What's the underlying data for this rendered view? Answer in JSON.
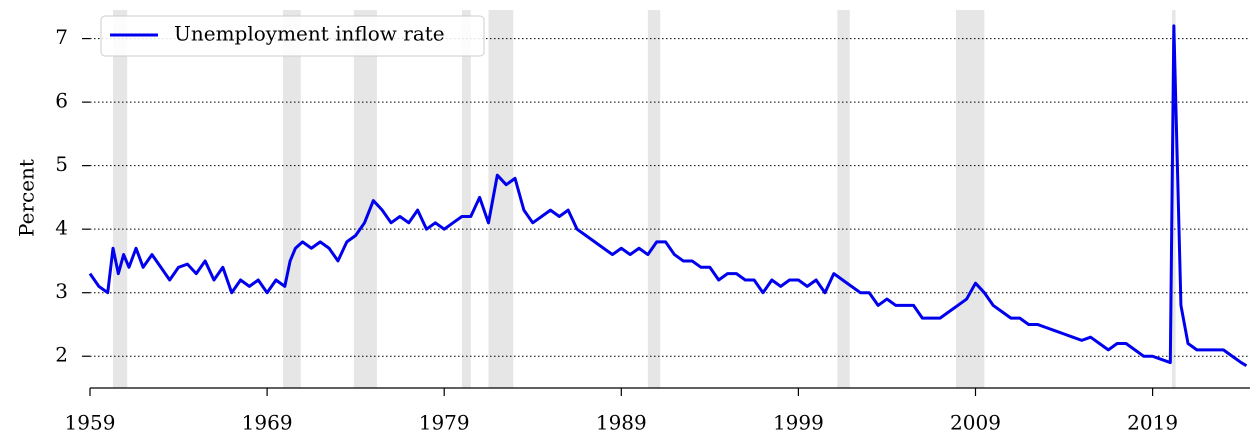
{
  "chart_data": {
    "type": "line",
    "ylabel": "Percent",
    "x": [
      1959.0,
      1959.5,
      1960.0,
      1960.3,
      1960.6,
      1960.9,
      1961.2,
      1961.6,
      1962.0,
      1962.5,
      1963.0,
      1963.5,
      1964.0,
      1964.5,
      1965.0,
      1965.5,
      1966.0,
      1966.5,
      1967.0,
      1967.5,
      1968.0,
      1968.5,
      1969.0,
      1969.5,
      1970.0,
      1970.3,
      1970.6,
      1971.0,
      1971.5,
      1972.0,
      1972.5,
      1973.0,
      1973.5,
      1974.0,
      1974.5,
      1975.0,
      1975.5,
      1976.0,
      1976.5,
      1977.0,
      1977.5,
      1978.0,
      1978.5,
      1979.0,
      1979.5,
      1980.0,
      1980.5,
      1981.0,
      1981.5,
      1982.0,
      1982.5,
      1983.0,
      1983.5,
      1984.0,
      1984.5,
      1985.0,
      1985.5,
      1986.0,
      1986.5,
      1987.0,
      1987.5,
      1988.0,
      1988.5,
      1989.0,
      1989.5,
      1990.0,
      1990.5,
      1991.0,
      1991.5,
      1992.0,
      1992.5,
      1993.0,
      1993.5,
      1994.0,
      1994.5,
      1995.0,
      1995.5,
      1996.0,
      1996.5,
      1997.0,
      1997.5,
      1998.0,
      1998.5,
      1999.0,
      1999.5,
      2000.0,
      2000.5,
      2001.0,
      2001.5,
      2002.0,
      2002.5,
      2003.0,
      2003.5,
      2004.0,
      2004.5,
      2005.0,
      2005.5,
      2006.0,
      2006.5,
      2007.0,
      2007.5,
      2008.0,
      2008.5,
      2009.0,
      2009.5,
      2010.0,
      2010.5,
      2011.0,
      2011.5,
      2012.0,
      2012.5,
      2013.0,
      2013.5,
      2014.0,
      2014.5,
      2015.0,
      2015.5,
      2016.0,
      2016.5,
      2017.0,
      2017.5,
      2018.0,
      2018.5,
      2019.0,
      2019.5,
      2020.0,
      2020.2,
      2020.4,
      2020.6,
      2021.0,
      2021.5,
      2022.0,
      2022.5,
      2023.0,
      2023.5,
      2024.0,
      2024.3
    ],
    "series": [
      {
        "name": "Unemployment inflow rate",
        "color": "#0000ee",
        "values": [
          3.3,
          3.1,
          3.0,
          3.7,
          3.3,
          3.6,
          3.4,
          3.7,
          3.4,
          3.6,
          3.4,
          3.2,
          3.4,
          3.45,
          3.3,
          3.5,
          3.2,
          3.4,
          3.0,
          3.2,
          3.1,
          3.2,
          3.0,
          3.2,
          3.1,
          3.5,
          3.7,
          3.8,
          3.7,
          3.8,
          3.7,
          3.5,
          3.8,
          3.9,
          4.1,
          4.45,
          4.3,
          4.1,
          4.2,
          4.1,
          4.3,
          4.0,
          4.1,
          4.0,
          4.1,
          4.2,
          4.2,
          4.5,
          4.1,
          4.85,
          4.7,
          4.8,
          4.3,
          4.1,
          4.2,
          4.3,
          4.2,
          4.3,
          4.0,
          3.9,
          3.8,
          3.7,
          3.6,
          3.7,
          3.6,
          3.7,
          3.6,
          3.8,
          3.8,
          3.6,
          3.5,
          3.5,
          3.4,
          3.4,
          3.2,
          3.3,
          3.3,
          3.2,
          3.2,
          3.0,
          3.2,
          3.1,
          3.2,
          3.2,
          3.1,
          3.2,
          3.0,
          3.3,
          3.2,
          3.1,
          3.0,
          3.0,
          2.8,
          2.9,
          2.8,
          2.8,
          2.8,
          2.6,
          2.6,
          2.6,
          2.7,
          2.8,
          2.9,
          3.15,
          3.0,
          2.8,
          2.7,
          2.6,
          2.6,
          2.5,
          2.5,
          2.45,
          2.4,
          2.35,
          2.3,
          2.25,
          2.3,
          2.2,
          2.1,
          2.2,
          2.2,
          2.1,
          2.0,
          2.0,
          1.95,
          1.9,
          7.2,
          5.0,
          2.8,
          2.2,
          2.1,
          2.1,
          2.1,
          2.1,
          2.0,
          1.9,
          1.85
        ]
      }
    ],
    "recessions": [
      [
        1960.3,
        1961.1
      ],
      [
        1969.9,
        1970.9
      ],
      [
        1973.9,
        1975.2
      ],
      [
        1980.0,
        1980.5
      ],
      [
        1981.5,
        1982.9
      ],
      [
        1990.5,
        1991.2
      ],
      [
        2001.2,
        2001.9
      ],
      [
        2007.9,
        2009.5
      ],
      [
        2020.1,
        2020.3
      ]
    ],
    "xlim": [
      1959,
      2024.5
    ],
    "xticks": [
      1959,
      1969,
      1979,
      1989,
      1999,
      2009,
      2019
    ],
    "ylim": [
      1.5,
      7.45
    ],
    "yticks": [
      2,
      3,
      4,
      5,
      6,
      7
    ],
    "grid": true,
    "legend": "upper-left"
  }
}
